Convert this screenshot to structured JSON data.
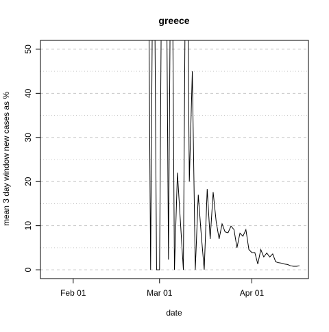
{
  "chart_data": {
    "type": "line",
    "title": "greece",
    "xlabel": "date",
    "ylabel": "mean  3  day window new cases as %",
    "x_ticks": [
      "2020-02-01",
      "2020-03-01",
      "2020-04-01"
    ],
    "x_tick_labels": [
      "Feb 01",
      "Mar 01",
      "Apr 01"
    ],
    "y_ticks": [
      0,
      10,
      20,
      30,
      40,
      50
    ],
    "xlim": [
      "2020-01-21",
      "2020-04-20"
    ],
    "ylim": [
      -2,
      52
    ],
    "grid": {
      "major": "dashed",
      "minor": "dotted",
      "y_minor_step": 5
    },
    "series": [
      {
        "x": [
          "2020-02-26",
          "2020-02-27",
          "2020-02-28",
          "2020-02-29",
          "2020-03-01",
          "2020-03-02",
          "2020-03-03",
          "2020-03-04",
          "2020-03-05",
          "2020-03-06",
          "2020-03-07",
          "2020-03-08",
          "2020-03-09",
          "2020-03-10",
          "2020-03-11",
          "2020-03-12",
          "2020-03-13",
          "2020-03-14",
          "2020-03-15",
          "2020-03-16",
          "2020-03-17",
          "2020-03-18",
          "2020-03-19",
          "2020-03-20",
          "2020-03-21",
          "2020-03-22",
          "2020-03-23",
          "2020-03-24",
          "2020-03-25",
          "2020-03-26",
          "2020-03-27",
          "2020-03-28",
          "2020-03-29",
          "2020-03-30",
          "2020-03-31",
          "2020-04-01",
          "2020-04-02",
          "2020-04-03",
          "2020-04-04",
          "2020-04-05",
          "2020-04-06",
          "2020-04-07",
          "2020-04-08",
          "2020-04-09",
          "2020-04-10",
          "2020-04-11",
          "2020-04-12",
          "2020-04-13",
          "2020-04-14",
          "2020-04-15",
          "2020-04-16",
          "2020-04-17"
        ],
        "values": [
          100,
          0,
          100,
          0,
          0,
          100,
          100,
          2.3,
          100,
          0,
          22,
          11,
          0,
          100,
          20,
          45,
          0,
          17,
          8,
          0,
          18.3,
          7,
          17.6,
          11,
          7,
          10.4,
          8.6,
          8.4,
          9.9,
          9.1,
          5,
          8.3,
          7.6,
          9.1,
          4.6,
          3.9,
          3.9,
          1.3,
          4.6,
          2.9,
          3.8,
          2.9,
          3.6,
          1.8,
          1.6,
          1.5,
          1.3,
          1.2,
          0.9,
          0.8,
          0.8,
          0.9
        ]
      }
    ]
  }
}
